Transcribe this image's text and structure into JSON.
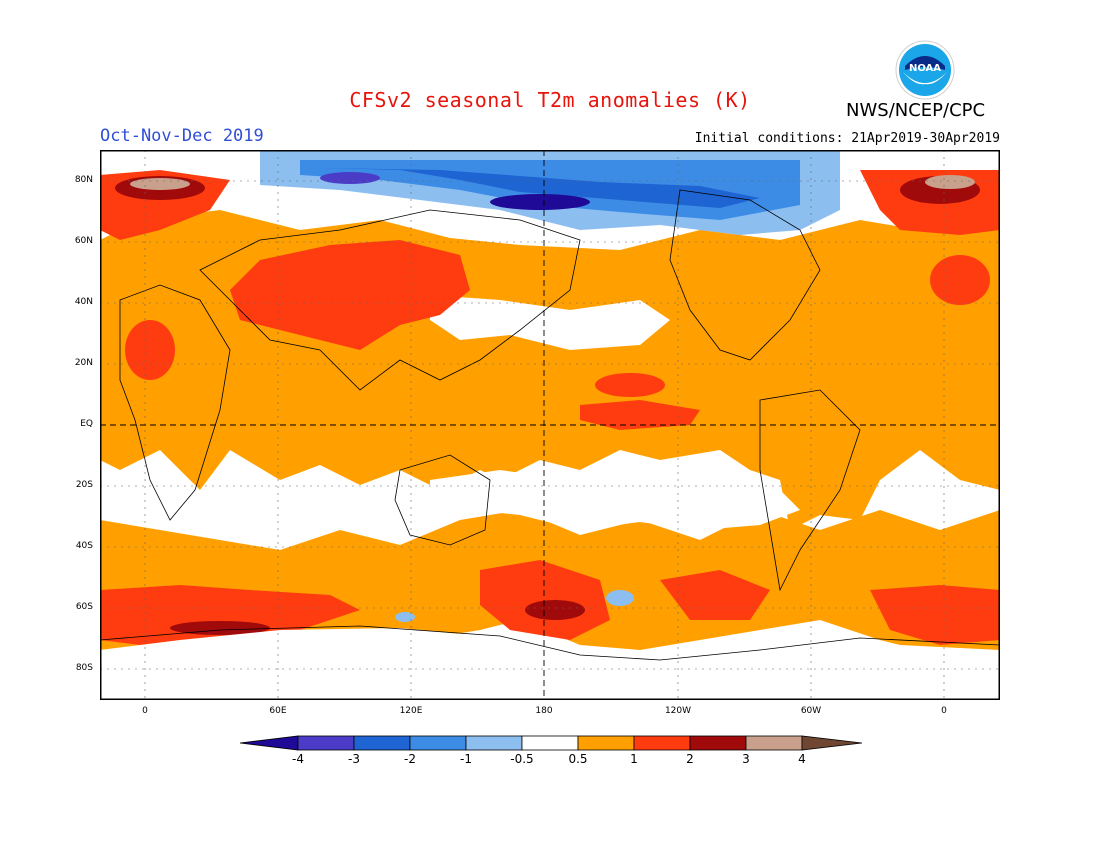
{
  "header": {
    "title": "CFSv2 seasonal T2m anomalies (K)",
    "agency": "NWS/NCEP/CPC",
    "season": "Oct-Nov-Dec 2019",
    "initial_conditions": "Initial conditions: 21Apr2019-30Apr2019",
    "logo_text": "NOAA"
  },
  "map": {
    "lat_labels": [
      "80N",
      "60N",
      "40N",
      "20N",
      "EQ",
      "20S",
      "40S",
      "60S",
      "80S"
    ],
    "lon_labels": [
      "0",
      "60E",
      "120E",
      "180",
      "120W",
      "60W",
      "0"
    ]
  },
  "colorbar": {
    "tick_labels": [
      "-4",
      "-3",
      "-2",
      "-1",
      "-0.5",
      "0.5",
      "1",
      "2",
      "3",
      "4"
    ],
    "colors": [
      "#1e0a96",
      "#4b3cc8",
      "#1e64d2",
      "#3c8ce6",
      "#8cbef0",
      "#ffffff",
      "#ffa000",
      "#ff3c0f",
      "#a00a0a",
      "#c8a08c",
      "#6e4632"
    ]
  }
}
